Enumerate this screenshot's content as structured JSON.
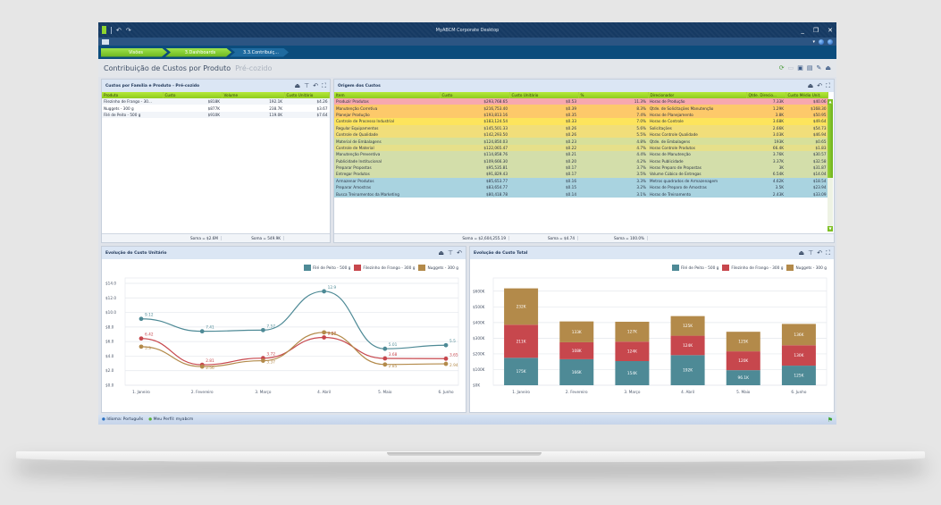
{
  "window": {
    "title": "MyABCM Corporate Desktop",
    "controls": {
      "minimize": "_",
      "restore": "❐",
      "close": "✕"
    }
  },
  "breadcrumb": [
    {
      "label": "Visões"
    },
    {
      "label": "3.Dashboards"
    },
    {
      "label": "3.3.Contribuiç..."
    }
  ],
  "page": {
    "title": "Contribuição de Custos por Produto",
    "subtitle": "Pré-cozido"
  },
  "colors": {
    "title_bar": "#163a63",
    "breadcrumb_bar": "#0b4c7c",
    "green_accent": "#8fcc1e",
    "series_file": "#4e8a96",
    "series_filezinho": "#c7474d",
    "series_nuggets": "#b38a4a"
  },
  "products_panel": {
    "title": "Custos por Família e Produto - Pré-cozido",
    "columns": [
      "Produto",
      "Custo",
      "Volume",
      "Custo Unitário"
    ],
    "rows": [
      [
        "Filezinho de Frango - 30...",
        "$818K",
        "192.1K",
        "$4.26"
      ],
      [
        "Nuggets - 300 g",
        "$877K",
        "238.7K",
        "$3.67"
      ],
      [
        "Filé de Peito - 500 g",
        "$910K",
        "119.0K",
        "$7.64"
      ]
    ],
    "footer": [
      "Soma = $2.6M",
      "Soma = 549.9K"
    ]
  },
  "origins_panel": {
    "title": "Origem dos Custos",
    "columns": [
      "Item",
      "Custo",
      "Custo Unitário",
      "%",
      "Direcionador",
      "Qtde. Direcio...",
      "Custo Médio Unit."
    ],
    "rows": [
      {
        "item": "Produzir Produtos",
        "custo": "$293,768.65",
        "unit": "$0.53",
        "pct": "11.3%",
        "driver": "Horas de Produção",
        "qty": "7.33K",
        "avg": "$40.06",
        "color": "#f7a8ae"
      },
      {
        "item": "Manutenção Corretiva",
        "custo": "$216,753.40",
        "unit": "$0.39",
        "pct": "8.3%",
        "driver": "Qtde. de Solicitações Manutenção",
        "qty": "1.29K",
        "avg": "$168.30",
        "color": "#fdc96a"
      },
      {
        "item": "Planejar Produção",
        "custo": "$193,813.16",
        "unit": "$0.35",
        "pct": "7.4%",
        "driver": "Horas de Planejamento",
        "qty": "3.8K",
        "avg": "$50.95",
        "color": "#fdc96a"
      },
      {
        "item": "Controle de Processo Industrial",
        "custo": "$183,124.54",
        "unit": "$0.33",
        "pct": "7.0%",
        "driver": "Horas de Controle",
        "qty": "3.68K",
        "avg": "$49.64",
        "color": "#fde45c"
      },
      {
        "item": "Regular Equipamentos",
        "custo": "$145,501.33",
        "unit": "$0.26",
        "pct": "5.6%",
        "driver": "Solicitações",
        "qty": "2.66K",
        "avg": "$54.73",
        "color": "#f1de7a"
      },
      {
        "item": "Controle de Qualidade",
        "custo": "$142,293.50",
        "unit": "$0.26",
        "pct": "5.5%",
        "driver": "Horas Controle Qualidade",
        "qty": "3.03K",
        "avg": "$46.94",
        "color": "#f1de7a"
      },
      {
        "item": "Material de Embalagens",
        "custo": "$124,850.03",
        "unit": "$0.23",
        "pct": "4.8%",
        "driver": "Qtde. de Embalagens",
        "qty": "193K",
        "avg": "$0.65",
        "color": "#d7e09a"
      },
      {
        "item": "Controle de Material",
        "custo": "$122,065.47",
        "unit": "$0.22",
        "pct": "4.7%",
        "driver": "Horas Controle Produtos",
        "qty": "66.4K",
        "avg": "$1.83",
        "color": "#e6e08a"
      },
      {
        "item": "Manutenção Preventiva",
        "custo": "$114,858.76",
        "unit": "$0.21",
        "pct": "4.4%",
        "driver": "Horas de Manutenção",
        "qty": "3.76K",
        "avg": "$30.57",
        "color": "#d3deaa"
      },
      {
        "item": "Publicidade Institucional",
        "custo": "$109,666.30",
        "unit": "$0.20",
        "pct": "4.2%",
        "driver": "Horas Publicidade",
        "qty": "3.37K",
        "avg": "$32.58",
        "color": "#d3deaa"
      },
      {
        "item": "Preparar Propostas",
        "custo": "$95,535.81",
        "unit": "$0.17",
        "pct": "3.7%",
        "driver": "Horas Preparo de Propostas",
        "qty": "3K",
        "avg": "$31.87",
        "color": "#d3deaa"
      },
      {
        "item": "Entregar Produtos",
        "custo": "$91,829.43",
        "unit": "$0.17",
        "pct": "3.5%",
        "driver": "Volume Cúbico de Entregas",
        "qty": "6.54K",
        "avg": "$14.04",
        "color": "#d3deaa"
      },
      {
        "item": "Armazenar Produtos",
        "custo": "$85,653.77",
        "unit": "$0.16",
        "pct": "3.3%",
        "driver": "Metros quadrados de Armazenagem",
        "qty": "4.62K",
        "avg": "$18.54",
        "color": "#a9d3e0"
      },
      {
        "item": "Preparar Amostras",
        "custo": "$83,654.77",
        "unit": "$0.15",
        "pct": "3.2%",
        "driver": "Horas de Preparo de Amostras",
        "qty": "3.5K",
        "avg": "$23.94",
        "color": "#a9d3e0"
      },
      {
        "item": "Busca Treinamentos da Marketing",
        "custo": "$80,418.78",
        "unit": "$0.14",
        "pct": "3.1%",
        "driver": "Horas de Treinamento",
        "qty": "2.43K",
        "avg": "$33.09",
        "color": "#a9d3e0"
      }
    ],
    "footer": [
      "Soma = $2,604,255.19",
      "Soma = $4.74",
      "Soma = 100.0%"
    ]
  },
  "unit_cost_panel": {
    "title": "Evolução do Custo Unitário"
  },
  "total_cost_panel": {
    "title": "Evolução do Custo Total"
  },
  "chart_data": [
    {
      "type": "line",
      "title": "Evolução do Custo Unitário",
      "categories": [
        "1. Janeiro",
        "2. Fevereiro",
        "3. Março",
        "4. Abril",
        "5. Maio",
        "6. Junho"
      ],
      "series": [
        {
          "name": "Filé de Peito - 500 g",
          "color": "#4e8a96",
          "values": [
            9.12,
            7.41,
            7.57,
            12.9,
            5.01,
            5.5
          ]
        },
        {
          "name": "Filezinho de Frango - 300 g",
          "color": "#c7474d",
          "values": [
            6.42,
            2.81,
            3.72,
            6.57,
            3.68,
            3.65
          ]
        },
        {
          "name": "Nuggets - 300 g",
          "color": "#b38a4a",
          "values": [
            5.3,
            2.56,
            3.37,
            7.26,
            2.85,
            2.94
          ]
        }
      ],
      "yticks": [
        "$0.0",
        "$2.0",
        "$4.0",
        "$6.0",
        "$8.0",
        "$10.0",
        "$12.0",
        "$14.0"
      ],
      "ylim": [
        0,
        14
      ],
      "legend_position": "top-right",
      "grid": true
    },
    {
      "type": "bar",
      "stacked": true,
      "title": "Evolução do Custo Total",
      "categories": [
        "1. Janeiro",
        "2. Fevereiro",
        "3. Março",
        "4. Abril",
        "5. Maio",
        "6. Junho"
      ],
      "series": [
        {
          "name": "Filé de Peito - 500 g",
          "color": "#4e8a96",
          "values": [
            175,
            166,
            154,
            192,
            96.1,
            125
          ],
          "labels": [
            "175K",
            "166K",
            "154K",
            "192K",
            "96.1K",
            "125K"
          ]
        },
        {
          "name": "Filezinho de Frango - 300 g",
          "color": "#c7474d",
          "values": [
            211,
            108,
            124,
            124,
            120,
            130
          ],
          "labels": [
            "211K",
            "108K",
            "124K",
            "124K",
            "120K",
            "130K"
          ]
        },
        {
          "name": "Nuggets - 300 g",
          "color": "#b38a4a",
          "values": [
            232,
            133,
            127,
            125,
            125,
            136
          ],
          "labels": [
            "232K",
            "133K",
            "127K",
            "125K",
            "125K",
            "136K"
          ]
        }
      ],
      "yticks": [
        "$0K",
        "$100K",
        "$200K",
        "$300K",
        "$400K",
        "$500K",
        "$600K"
      ],
      "ylim": [
        0,
        650
      ],
      "legend_position": "top-right",
      "grid": true
    }
  ],
  "statusbar": {
    "language": "Idioma: Português",
    "profile": "Meu Perfil: myabcm"
  }
}
